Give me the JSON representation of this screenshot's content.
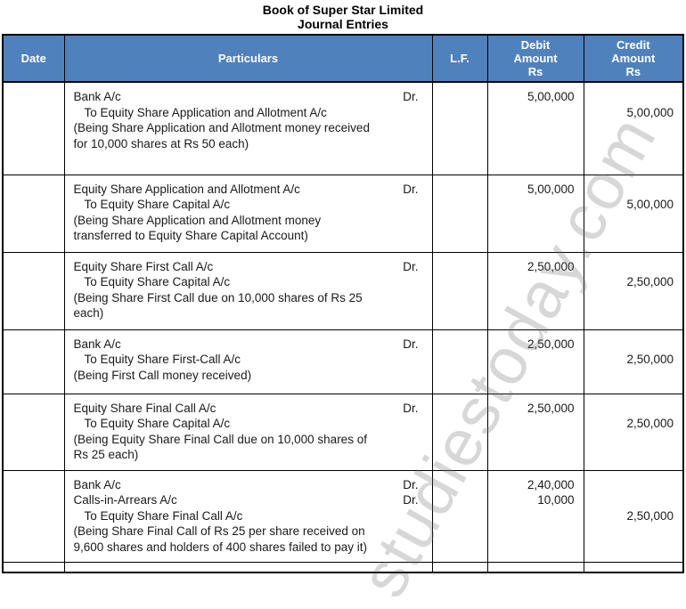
{
  "title": "Book of Super Star Limited",
  "subtitle": "Journal Entries",
  "watermark": "studiestoday.com",
  "colors": {
    "header_bg": "#4f81bd",
    "header_text": "#ffffff",
    "border": "#000000"
  },
  "table": {
    "headers": {
      "date": "Date",
      "particulars": "Particulars",
      "lf": "L.F.",
      "debit": "Debit\nAmount\nRs",
      "credit": "Credit\nAmount\nRs"
    }
  },
  "entries": [
    {
      "lines": [
        {
          "text": "Bank A/c",
          "indent": 0,
          "dr": "Dr.",
          "debit": "5,00,000",
          "credit": ""
        },
        {
          "text": "To Equity Share Application and Allotment A/c",
          "indent": 1,
          "dr": "",
          "debit": "",
          "credit": "5,00,000"
        },
        {
          "text": "(Being Share Application and Allotment money received\nfor 10,000 shares at Rs 50 each)",
          "indent": 0,
          "dr": "",
          "debit": "",
          "credit": ""
        }
      ]
    },
    {
      "lines": [
        {
          "text": "Equity Share Application and Allotment A/c",
          "indent": 0,
          "dr": "Dr.",
          "debit": "5,00,000",
          "credit": ""
        },
        {
          "text": "To Equity Share Capital A/c",
          "indent": 1,
          "dr": "",
          "debit": "",
          "credit": "5,00,000"
        },
        {
          "text": "(Being Share Application and Allotment money\ntransferred to Equity Share Capital Account)",
          "indent": 0,
          "dr": "",
          "debit": "",
          "credit": ""
        }
      ]
    },
    {
      "lines": [
        {
          "text": "Equity Share First Call A/c",
          "indent": 0,
          "dr": "Dr.",
          "debit": "2,50,000",
          "credit": ""
        },
        {
          "text": "To Equity Share Capital A/c",
          "indent": 1,
          "dr": "",
          "debit": "",
          "credit": "2,50,000"
        },
        {
          "text": "(Being Share First Call due on 10,000 shares of Rs 25\neach)",
          "indent": 0,
          "dr": "",
          "debit": "",
          "credit": ""
        }
      ]
    },
    {
      "lines": [
        {
          "text": "Bank A/c",
          "indent": 0,
          "dr": "Dr.",
          "debit": "2,50,000",
          "credit": ""
        },
        {
          "text": "To Equity Share First-Call A/c",
          "indent": 1,
          "dr": "",
          "debit": "",
          "credit": "2,50,000"
        },
        {
          "text": "(Being First Call money received)",
          "indent": 0,
          "dr": "",
          "debit": "",
          "credit": ""
        }
      ]
    },
    {
      "lines": [
        {
          "text": "Equity Share Final Call A/c",
          "indent": 0,
          "dr": "Dr.",
          "debit": "2,50,000",
          "credit": ""
        },
        {
          "text": "To Equity Share Capital A/c",
          "indent": 1,
          "dr": "",
          "debit": "",
          "credit": "2,50,000"
        },
        {
          "text": "(Being Equity Share Final Call due on 10,000 shares of\nRs 25 each)",
          "indent": 0,
          "dr": "",
          "debit": "",
          "credit": ""
        }
      ]
    },
    {
      "lines": [
        {
          "text": "Bank A/c",
          "indent": 0,
          "dr": "Dr.",
          "debit": "2,40,000",
          "credit": ""
        },
        {
          "text": "Calls-in-Arrears A/c",
          "indent": 0,
          "dr": "Dr.",
          "debit": "10,000",
          "credit": ""
        },
        {
          "text": "To Equity Share Final Call A/c",
          "indent": 1,
          "dr": "",
          "debit": "",
          "credit": "2,50,000"
        },
        {
          "text": "(Being Share Final Call of Rs 25 per share received on\n9,600 shares and holders of 400 shares failed to pay it)",
          "indent": 0,
          "dr": "",
          "debit": "",
          "credit": ""
        }
      ]
    }
  ]
}
